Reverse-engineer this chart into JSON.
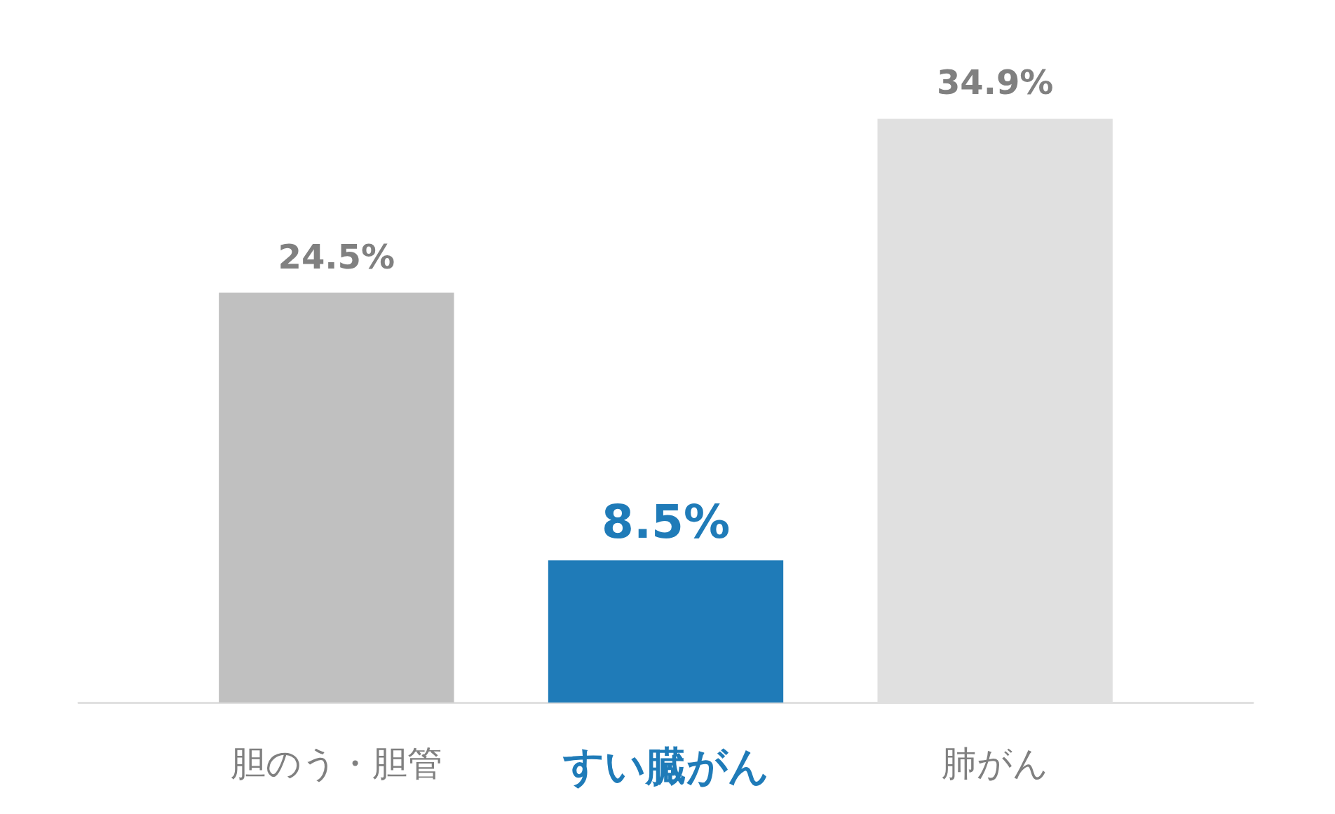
{
  "chart_data": {
    "type": "bar",
    "categories": [
      "胆のう・胆管",
      "すい臓がん",
      "肺がん"
    ],
    "values": [
      24.5,
      8.5,
      34.9
    ],
    "colors": [
      "#c0c0c0",
      "#1f7bb8",
      "#e0e0e0"
    ],
    "value_labels": [
      "24.5%",
      "8.5%",
      "34.9%"
    ]
  }
}
